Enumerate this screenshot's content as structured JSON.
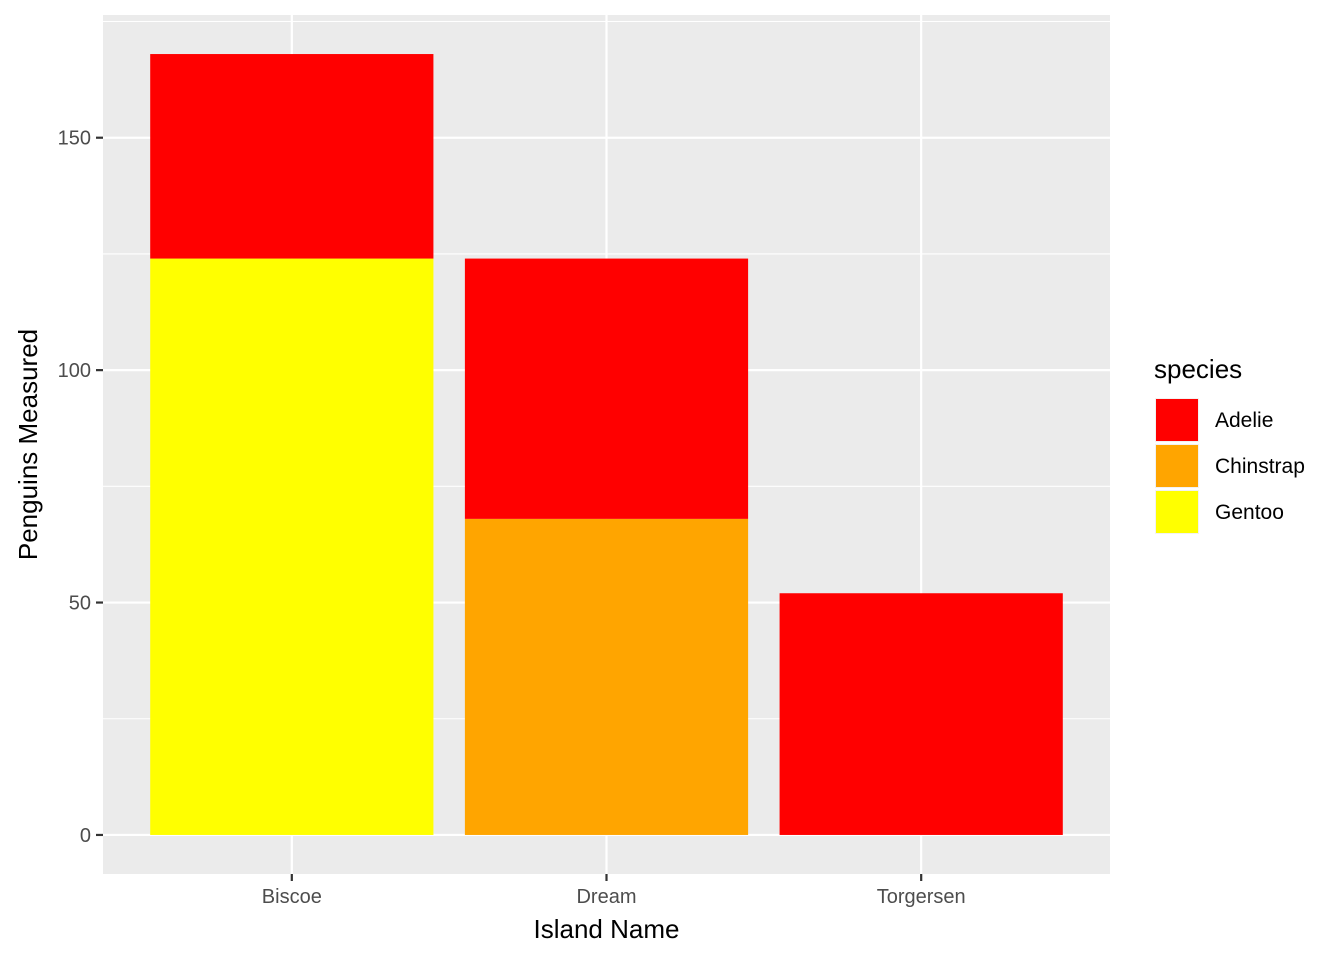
{
  "chart_data": {
    "type": "bar",
    "stacked": true,
    "categories": [
      "Biscoe",
      "Dream",
      "Torgersen"
    ],
    "series": [
      {
        "name": "Adelie",
        "values": [
          44,
          56,
          52
        ],
        "color": "#FF0000"
      },
      {
        "name": "Chinstrap",
        "values": [
          0,
          68,
          0
        ],
        "color": "#FFA500"
      },
      {
        "name": "Gentoo",
        "values": [
          124,
          0,
          0
        ],
        "color": "#FFFF00"
      }
    ],
    "stack_order_bottom_to_top": [
      "Gentoo",
      "Chinstrap",
      "Adelie"
    ],
    "xlabel": "Island Name",
    "ylabel": "Penguins Measured",
    "ylim": [
      -8.4,
      176.4
    ],
    "yticks": [
      0,
      50,
      100,
      150
    ],
    "ytick_labels": [
      "0",
      "50",
      "100",
      "150"
    ],
    "grid": true,
    "panel_background": "#EBEBEB",
    "grid_color": "#FFFFFF",
    "legend": {
      "title": "species",
      "placement": "right",
      "entries": [
        "Adelie",
        "Chinstrap",
        "Gentoo"
      ]
    }
  }
}
